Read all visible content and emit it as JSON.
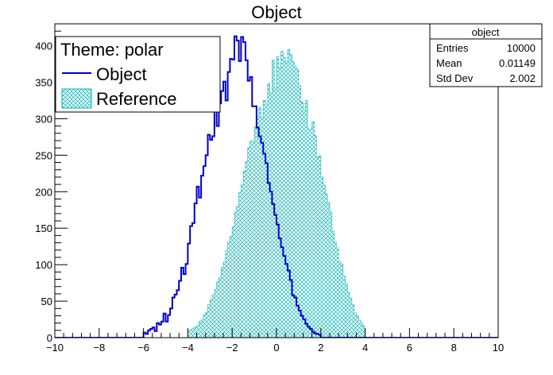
{
  "chart_data": {
    "type": "histogram",
    "title": "Object",
    "xlabel": "",
    "ylabel": "",
    "xlim": [
      -10,
      10
    ],
    "ylim": [
      0,
      430
    ],
    "x_ticks": [
      -10,
      -8,
      -6,
      -4,
      -2,
      0,
      2,
      4,
      6,
      8,
      10
    ],
    "y_ticks": [
      0,
      50,
      100,
      150,
      200,
      250,
      300,
      350,
      400
    ],
    "bins": 200,
    "legend": {
      "position": "top-left",
      "title": "Theme: polar",
      "entries": [
        "Object",
        "Reference"
      ]
    },
    "colors": {
      "object": "#0000cc",
      "reference": "#00b2b2"
    },
    "series": [
      {
        "name": "Object",
        "style": "step-line",
        "bin_range": [
          -6.0,
          5.8
        ],
        "values": [
          7,
          5,
          10,
          12,
          14,
          9,
          20,
          18,
          22,
          33,
          22,
          31,
          40,
          55,
          59,
          65,
          78,
          96,
          87,
          101,
          129,
          153,
          157,
          184,
          207,
          192,
          222,
          235,
          250,
          278,
          271,
          276,
          313,
          290,
          321,
          338,
          351,
          325,
          364,
          382,
          381,
          413,
          407,
          379,
          412,
          405,
          380,
          352,
          357,
          317,
          317,
          288,
          276,
          267,
          252,
          239,
          212,
          200,
          183,
          168,
          155,
          136,
          124,
          112,
          101,
          92,
          79,
          58,
          55,
          44,
          37,
          30,
          25,
          19,
          15,
          12,
          8,
          6,
          5,
          4
        ]
      },
      {
        "name": "Reference",
        "style": "hatched-fill",
        "bin_range": [
          -4.0,
          7.8
        ],
        "values": [
          9,
          11,
          13,
          15,
          16,
          22,
          25,
          31,
          34,
          45,
          52,
          58,
          66,
          77,
          82,
          96,
          104,
          119,
          131,
          139,
          152,
          172,
          180,
          199,
          210,
          228,
          241,
          260,
          270,
          268,
          289,
          303,
          316,
          300,
          325,
          320,
          348,
          335,
          380,
          340,
          385,
          370,
          392,
          384,
          376,
          395,
          388,
          378,
          372,
          368,
          345,
          323,
          312,
          325,
          286,
          286,
          296,
          277,
          247,
          249,
          221,
          209,
          197,
          185,
          172,
          146,
          131,
          123,
          104,
          101,
          84,
          74,
          62,
          54,
          45,
          34,
          30,
          24,
          20,
          16
        ]
      }
    ]
  },
  "stats": {
    "title": "object",
    "rows": [
      {
        "label": "Entries",
        "value": "10000"
      },
      {
        "label": "Mean",
        "value": "0.01149"
      },
      {
        "label": "Std Dev",
        "value": "2.002"
      }
    ]
  }
}
